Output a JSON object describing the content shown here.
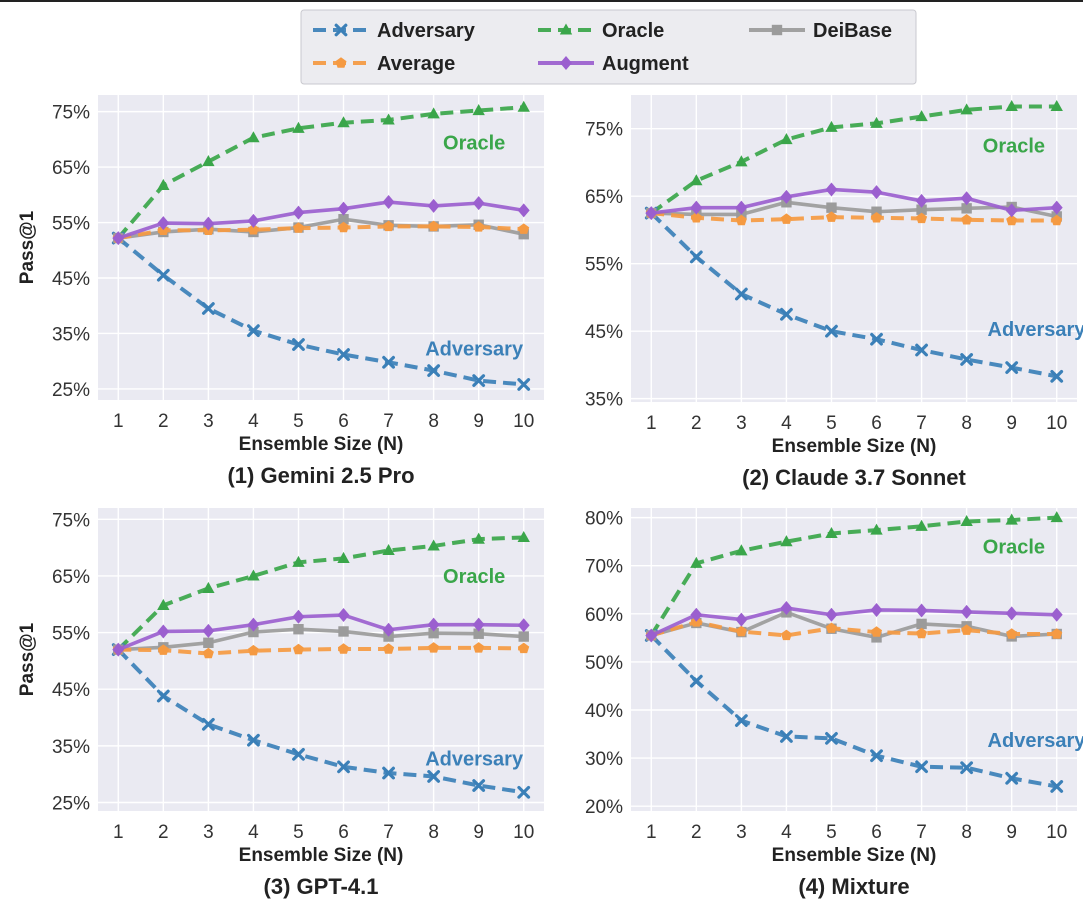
{
  "legend": {
    "entries": [
      {
        "key": "adversary",
        "label": "Adversary"
      },
      {
        "key": "average",
        "label": "Average"
      },
      {
        "key": "oracle",
        "label": "Oracle"
      },
      {
        "key": "augment",
        "label": "Augment"
      },
      {
        "key": "deibase",
        "label": "DeiBase"
      }
    ]
  },
  "series_styles": {
    "adversary": {
      "color": "#3b80b8",
      "dash": true,
      "marker": "x"
    },
    "average": {
      "color": "#f59a42",
      "dash": true,
      "marker": "pentagon"
    },
    "oracle": {
      "color": "#3aa64a",
      "dash": true,
      "marker": "triangle"
    },
    "augment": {
      "color": "#9b5fcf",
      "dash": false,
      "marker": "diamond"
    },
    "deibase": {
      "color": "#9b9b9b",
      "dash": false,
      "marker": "square"
    }
  },
  "chart_data": [
    {
      "type": "line",
      "title": "(1) Gemini 2.5 Pro",
      "xlabel": "Ensemble Size (N)",
      "ylabel": "Pass@1",
      "x": [
        1,
        2,
        3,
        4,
        5,
        6,
        7,
        8,
        9,
        10
      ],
      "ylim": [
        23,
        78
      ],
      "yticks": [
        25,
        35,
        45,
        55,
        65,
        75
      ],
      "ytick_labels": [
        "25%",
        "35%",
        "45%",
        "55%",
        "65%",
        "75%"
      ],
      "series": [
        {
          "key": "adversary",
          "name": "Adversary",
          "values": [
            52.2,
            45.5,
            39.5,
            35.5,
            33,
            31.2,
            29.8,
            28.3,
            26.5,
            25.8
          ]
        },
        {
          "key": "average",
          "name": "Average",
          "values": [
            52.2,
            53.6,
            53.6,
            53.7,
            54,
            54.1,
            54.3,
            54.3,
            54.2,
            53.8
          ]
        },
        {
          "key": "oracle",
          "name": "Oracle",
          "values": [
            52.2,
            61.7,
            66,
            70.3,
            72,
            73,
            73.5,
            74.6,
            75.2,
            75.8
          ]
        },
        {
          "key": "augment",
          "name": "Augment",
          "values": [
            52.2,
            54.9,
            54.8,
            55.3,
            56.8,
            57.5,
            58.7,
            58,
            58.5,
            57.2
          ]
        },
        {
          "key": "deibase",
          "name": "DeiBase",
          "values": [
            52.2,
            53.3,
            53.8,
            53.3,
            54.1,
            55.6,
            54.5,
            54.3,
            54.6,
            52.9
          ]
        }
      ],
      "annotations": [
        {
          "key": "oracle",
          "text": "Oracle",
          "x": 8.9,
          "y": 68.2
        },
        {
          "key": "adversary",
          "text": "Adversary",
          "x": 8.9,
          "y": 31
        }
      ]
    },
    {
      "type": "line",
      "title": "(2) Claude 3.7 Sonnet",
      "xlabel": "Ensemble Size (N)",
      "ylabel": "",
      "x": [
        1,
        2,
        3,
        4,
        5,
        6,
        7,
        8,
        9,
        10
      ],
      "ylim": [
        34.5,
        80
      ],
      "yticks": [
        35,
        45,
        55,
        65,
        75
      ],
      "ytick_labels": [
        "35%",
        "45%",
        "55%",
        "65%",
        "75%"
      ],
      "series": [
        {
          "key": "adversary",
          "name": "Adversary",
          "values": [
            62.5,
            56,
            50.5,
            47.5,
            45,
            43.8,
            42.2,
            40.8,
            39.6,
            38.3
          ]
        },
        {
          "key": "average",
          "name": "Average",
          "values": [
            62.5,
            61.8,
            61.4,
            61.6,
            61.9,
            61.8,
            61.7,
            61.5,
            61.4,
            61.4
          ]
        },
        {
          "key": "oracle",
          "name": "Oracle",
          "values": [
            62.5,
            67.3,
            70.1,
            73.4,
            75.2,
            75.8,
            76.8,
            77.8,
            78.3,
            78.3
          ]
        },
        {
          "key": "augment",
          "name": "Augment",
          "values": [
            62.5,
            63.3,
            63.3,
            64.9,
            66,
            65.6,
            64.3,
            64.7,
            62.9,
            63.3
          ]
        },
        {
          "key": "deibase",
          "name": "DeiBase",
          "values": [
            62.5,
            62.3,
            62.3,
            64.1,
            63.3,
            62.7,
            63,
            63.2,
            63.4,
            62
          ]
        }
      ],
      "annotations": [
        {
          "key": "oracle",
          "text": "Oracle",
          "x": 9.05,
          "y": 71.5
        },
        {
          "key": "adversary",
          "text": "Adversary",
          "x": 9.55,
          "y": 44.3
        }
      ]
    },
    {
      "type": "line",
      "title": "(3) GPT-4.1",
      "xlabel": "Ensemble Size (N)",
      "ylabel": "Pass@1",
      "x": [
        1,
        2,
        3,
        4,
        5,
        6,
        7,
        8,
        9,
        10
      ],
      "ylim": [
        23.5,
        77
      ],
      "yticks": [
        25,
        35,
        45,
        55,
        65,
        75
      ],
      "ytick_labels": [
        "25%",
        "35%",
        "45%",
        "55%",
        "65%",
        "75%"
      ],
      "series": [
        {
          "key": "adversary",
          "name": "Adversary",
          "values": [
            52,
            43.8,
            38.8,
            36,
            33.5,
            31.3,
            30.2,
            29.6,
            28,
            26.8
          ]
        },
        {
          "key": "average",
          "name": "Average",
          "values": [
            52,
            51.9,
            51.3,
            51.8,
            52,
            52.1,
            52.1,
            52.3,
            52.3,
            52.2
          ]
        },
        {
          "key": "oracle",
          "name": "Oracle",
          "values": [
            52,
            59.8,
            62.8,
            65,
            67.4,
            68.1,
            69.5,
            70.3,
            71.5,
            71.8
          ]
        },
        {
          "key": "augment",
          "name": "Augment",
          "values": [
            52,
            55.2,
            55.3,
            56.4,
            57.8,
            58.1,
            55.5,
            56.4,
            56.4,
            56.3
          ]
        },
        {
          "key": "deibase",
          "name": "DeiBase",
          "values": [
            52,
            52.4,
            53.2,
            55.1,
            55.6,
            55.2,
            54.3,
            54.9,
            54.8,
            54.3
          ]
        }
      ],
      "annotations": [
        {
          "key": "oracle",
          "text": "Oracle",
          "x": 8.9,
          "y": 63.8
        },
        {
          "key": "adversary",
          "text": "Adversary",
          "x": 8.9,
          "y": 31.5
        }
      ]
    },
    {
      "type": "line",
      "title": "(4) Mixture",
      "xlabel": "Ensemble Size (N)",
      "ylabel": "",
      "x": [
        1,
        2,
        3,
        4,
        5,
        6,
        7,
        8,
        9,
        10
      ],
      "ylim": [
        19,
        82
      ],
      "yticks": [
        20,
        30,
        40,
        50,
        60,
        70,
        80
      ],
      "ytick_labels": [
        "20%",
        "30%",
        "40%",
        "50%",
        "60%",
        "70%",
        "80%"
      ],
      "series": [
        {
          "key": "adversary",
          "name": "Adversary",
          "values": [
            55.5,
            46,
            37.8,
            34.5,
            34.1,
            30.5,
            28.2,
            28,
            25.8,
            24.1
          ]
        },
        {
          "key": "average",
          "name": "Average",
          "values": [
            55.5,
            58.3,
            56.3,
            55.5,
            57,
            56.2,
            55.9,
            56.6,
            55.8,
            55.8
          ]
        },
        {
          "key": "oracle",
          "name": "Oracle",
          "values": [
            55.5,
            70.5,
            73.1,
            75,
            76.7,
            77.4,
            78.2,
            79.2,
            79.5,
            80
          ]
        },
        {
          "key": "augment",
          "name": "Augment",
          "values": [
            55.5,
            59.8,
            58.8,
            61.2,
            59.8,
            60.8,
            60.7,
            60.4,
            60.1,
            59.8
          ]
        },
        {
          "key": "deibase",
          "name": "DeiBase",
          "values": [
            55.5,
            58.1,
            56.2,
            60.3,
            56.9,
            55.1,
            57.9,
            57.4,
            55.3,
            55.8
          ]
        }
      ],
      "annotations": [
        {
          "key": "oracle",
          "text": "Oracle",
          "x": 9.05,
          "y": 72.5
        },
        {
          "key": "adversary",
          "text": "Adversary",
          "x": 9.55,
          "y": 32.3
        }
      ]
    }
  ]
}
